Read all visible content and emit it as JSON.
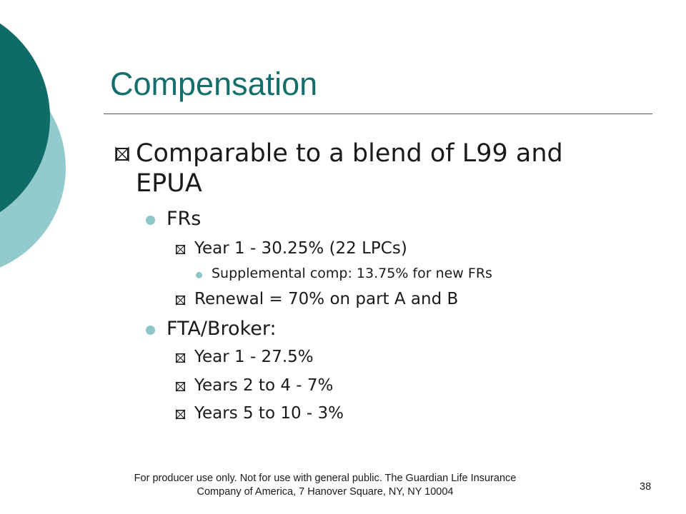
{
  "slide": {
    "title": "Compensation",
    "bullets": [
      {
        "text": "Comparable to a blend of L99 and EPUA",
        "children": [
          {
            "text": "FRs",
            "children": [
              {
                "text": "Year 1 - 30.25%  (22 LPCs)",
                "children": [
                  {
                    "text": "Supplemental comp: 13.75% for new FRs"
                  }
                ]
              },
              {
                "text": "Renewal = 70% on part A and B"
              }
            ]
          },
          {
            "text": "FTA/Broker:",
            "children": [
              {
                "text": "Year 1 - 27.5%"
              },
              {
                "text": "Years 2 to 4 - 7%"
              },
              {
                "text": "Years 5 to 10 - 3%"
              }
            ]
          }
        ]
      }
    ],
    "footer": {
      "line1": "For producer use only.  Not for use with general public.  The Guardian Life Insurance",
      "line2": "Company of America, 7 Hanover Square, NY, NY 10004"
    },
    "page_number": "38"
  },
  "colors": {
    "title": "#126f6b",
    "dark_circle": "#0f6b67",
    "light_circle": "#93cbcd",
    "bullet_dot": "#8cc6c8"
  },
  "icons": {
    "level1_bullet": "hollow-square-icon",
    "level2_bullet": "filled-circle-icon",
    "level3_bullet": "hollow-square-icon",
    "level4_bullet": "filled-circle-icon"
  }
}
